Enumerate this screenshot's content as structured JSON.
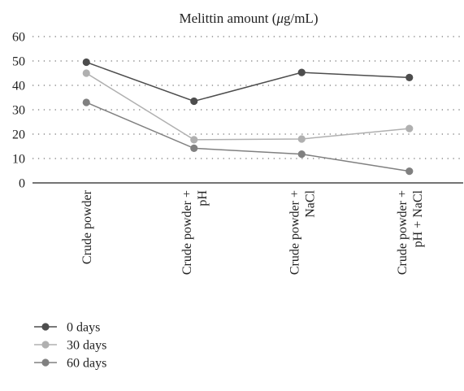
{
  "chart_data": {
    "type": "line",
    "title_parts": [
      "Melittin amount (",
      "μ",
      "g/mL)"
    ],
    "categories": [
      [
        "Crude powder"
      ],
      [
        "Crude powder +",
        "pH"
      ],
      [
        "Crude powder +",
        "NaCl"
      ],
      [
        "Crude powder +",
        "pH + NaCl"
      ]
    ],
    "ylim": [
      0,
      60
    ],
    "yticks": [
      0,
      10,
      20,
      30,
      40,
      50,
      60
    ],
    "grid": true,
    "legend_position": "bottom-left",
    "series": [
      {
        "name": "0 days",
        "values": [
          49.5,
          33.5,
          45.3,
          43.2
        ],
        "color": "#4d4d4d"
      },
      {
        "name": "30 days",
        "values": [
          45.0,
          17.7,
          18.0,
          22.3
        ],
        "color": "#b0b0b0"
      },
      {
        "name": "60 days",
        "values": [
          33.0,
          14.2,
          11.8,
          4.8
        ],
        "color": "#808080"
      }
    ]
  }
}
